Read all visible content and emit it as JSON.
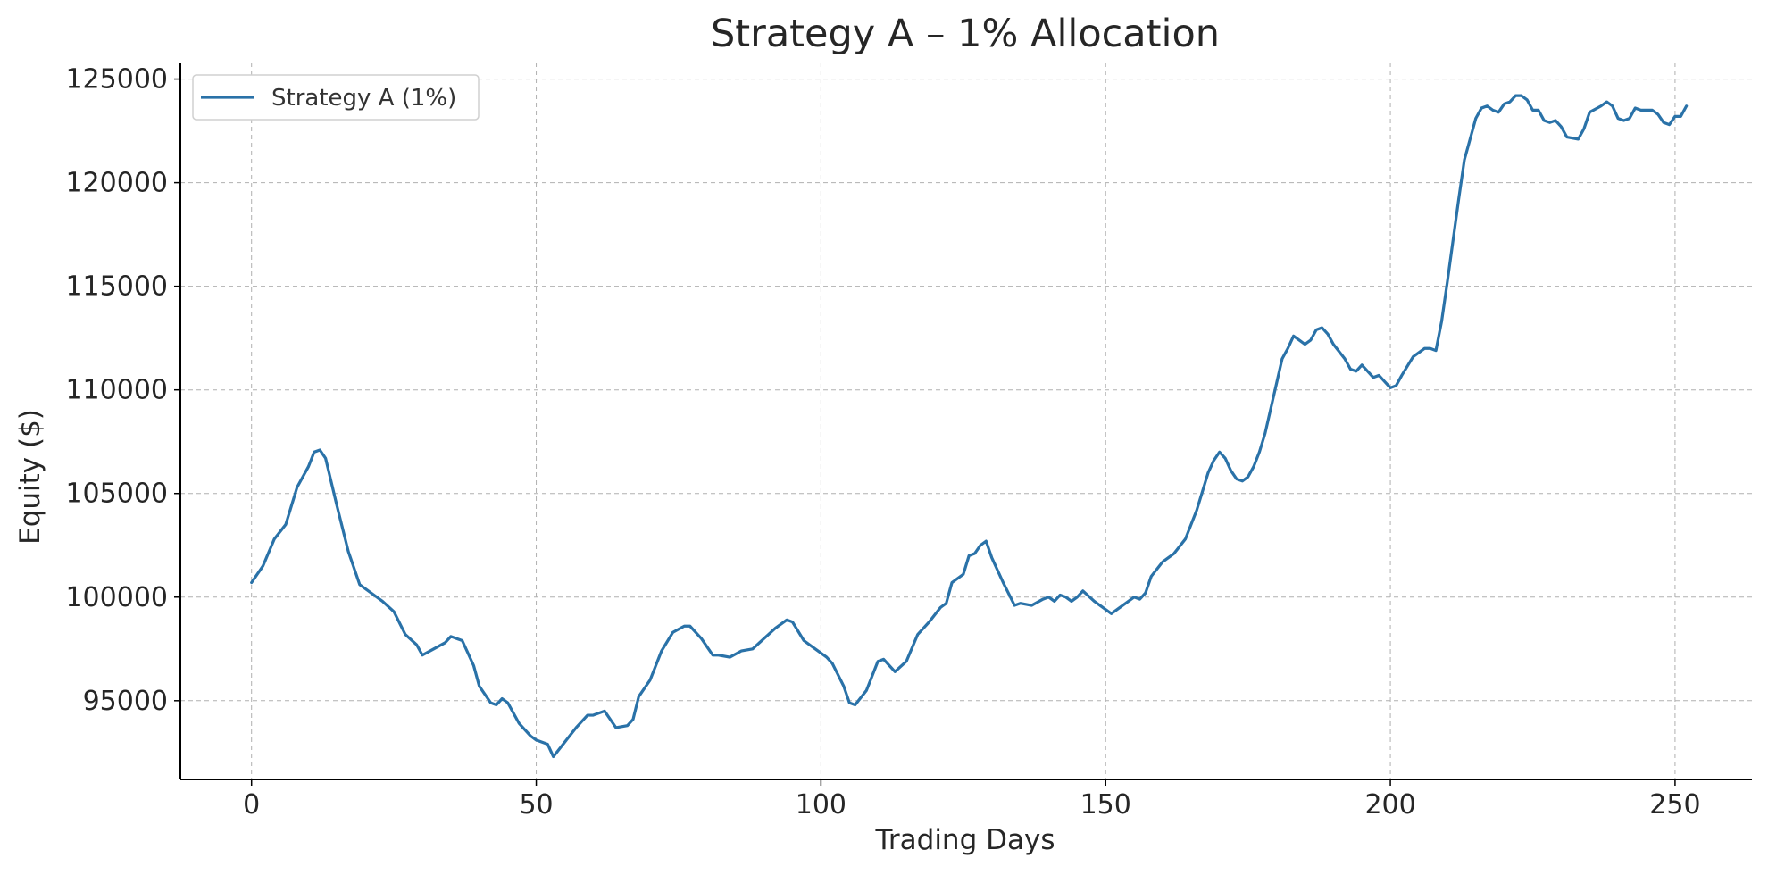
{
  "chart_data": {
    "type": "line",
    "title": "Strategy A – 1% Allocation",
    "xlabel": "Trading Days",
    "ylabel": "Equity ($)",
    "xlim": [
      -12.5,
      263.5
    ],
    "ylim": [
      91200,
      125800
    ],
    "x_ticks": [
      0,
      50,
      100,
      150,
      200,
      250
    ],
    "y_ticks": [
      95000,
      100000,
      105000,
      110000,
      115000,
      120000,
      125000
    ],
    "grid": true,
    "legend_position": "top-left",
    "series": [
      {
        "name": "Strategy A (1%)",
        "color": "#2a72a8",
        "points": [
          [
            0,
            100700
          ],
          [
            2,
            101500
          ],
          [
            4,
            102800
          ],
          [
            6,
            103500
          ],
          [
            8,
            105300
          ],
          [
            10,
            106300
          ],
          [
            11,
            107000
          ],
          [
            12,
            107100
          ],
          [
            13,
            106700
          ],
          [
            15,
            104400
          ],
          [
            17,
            102200
          ],
          [
            19,
            100600
          ],
          [
            21,
            100200
          ],
          [
            23,
            99800
          ],
          [
            25,
            99300
          ],
          [
            27,
            98200
          ],
          [
            29,
            97700
          ],
          [
            30,
            97200
          ],
          [
            32,
            97500
          ],
          [
            34,
            97800
          ],
          [
            35,
            98100
          ],
          [
            37,
            97900
          ],
          [
            39,
            96700
          ],
          [
            40,
            95700
          ],
          [
            42,
            94900
          ],
          [
            43,
            94800
          ],
          [
            44,
            95100
          ],
          [
            45,
            94900
          ],
          [
            47,
            93900
          ],
          [
            49,
            93300
          ],
          [
            50,
            93100
          ],
          [
            52,
            92900
          ],
          [
            53,
            92300
          ],
          [
            55,
            93000
          ],
          [
            57,
            93700
          ],
          [
            59,
            94300
          ],
          [
            60,
            94300
          ],
          [
            62,
            94500
          ],
          [
            64,
            93700
          ],
          [
            66,
            93800
          ],
          [
            67,
            94100
          ],
          [
            68,
            95200
          ],
          [
            70,
            96000
          ],
          [
            72,
            97400
          ],
          [
            74,
            98300
          ],
          [
            76,
            98600
          ],
          [
            77,
            98600
          ],
          [
            79,
            98000
          ],
          [
            81,
            97200
          ],
          [
            82,
            97200
          ],
          [
            84,
            97100
          ],
          [
            86,
            97400
          ],
          [
            88,
            97500
          ],
          [
            90,
            98000
          ],
          [
            92,
            98500
          ],
          [
            94,
            98900
          ],
          [
            95,
            98800
          ],
          [
            97,
            97900
          ],
          [
            99,
            97500
          ],
          [
            101,
            97100
          ],
          [
            102,
            96800
          ],
          [
            104,
            95700
          ],
          [
            105,
            94900
          ],
          [
            106,
            94800
          ],
          [
            108,
            95500
          ],
          [
            110,
            96900
          ],
          [
            111,
            97000
          ],
          [
            113,
            96400
          ],
          [
            115,
            96900
          ],
          [
            117,
            98200
          ],
          [
            119,
            98800
          ],
          [
            121,
            99500
          ],
          [
            122,
            99700
          ],
          [
            123,
            100700
          ],
          [
            125,
            101100
          ],
          [
            126,
            102000
          ],
          [
            127,
            102100
          ],
          [
            128,
            102500
          ],
          [
            129,
            102700
          ],
          [
            130,
            101900
          ],
          [
            132,
            100700
          ],
          [
            134,
            99600
          ],
          [
            135,
            99700
          ],
          [
            137,
            99600
          ],
          [
            139,
            99900
          ],
          [
            140,
            100000
          ],
          [
            141,
            99800
          ],
          [
            142,
            100100
          ],
          [
            143,
            100000
          ],
          [
            144,
            99800
          ],
          [
            145,
            100000
          ],
          [
            146,
            100300
          ],
          [
            148,
            99800
          ],
          [
            150,
            99400
          ],
          [
            151,
            99200
          ],
          [
            153,
            99600
          ],
          [
            155,
            100000
          ],
          [
            156,
            99900
          ],
          [
            157,
            100200
          ],
          [
            158,
            101000
          ],
          [
            160,
            101700
          ],
          [
            162,
            102100
          ],
          [
            164,
            102800
          ],
          [
            166,
            104200
          ],
          [
            168,
            106000
          ],
          [
            169,
            106600
          ],
          [
            170,
            107000
          ],
          [
            171,
            106700
          ],
          [
            172,
            106100
          ],
          [
            173,
            105700
          ],
          [
            174,
            105600
          ],
          [
            175,
            105800
          ],
          [
            176,
            106300
          ],
          [
            177,
            107000
          ],
          [
            178,
            107900
          ],
          [
            180,
            110300
          ],
          [
            181,
            111500
          ],
          [
            182,
            112000
          ],
          [
            183,
            112600
          ],
          [
            185,
            112200
          ],
          [
            186,
            112400
          ],
          [
            187,
            112900
          ],
          [
            188,
            113000
          ],
          [
            189,
            112700
          ],
          [
            190,
            112200
          ],
          [
            192,
            111500
          ],
          [
            193,
            111000
          ],
          [
            194,
            110900
          ],
          [
            195,
            111200
          ],
          [
            196,
            110900
          ],
          [
            197,
            110600
          ],
          [
            198,
            110700
          ],
          [
            199,
            110400
          ],
          [
            200,
            110100
          ],
          [
            201,
            110200
          ],
          [
            202,
            110700
          ],
          [
            204,
            111600
          ],
          [
            206,
            112000
          ],
          [
            207,
            112000
          ],
          [
            208,
            111900
          ],
          [
            209,
            113300
          ],
          [
            210,
            115200
          ],
          [
            212,
            119200
          ],
          [
            213,
            121100
          ],
          [
            214,
            122100
          ],
          [
            215,
            123100
          ],
          [
            216,
            123600
          ],
          [
            217,
            123700
          ],
          [
            218,
            123500
          ],
          [
            219,
            123400
          ],
          [
            220,
            123800
          ],
          [
            221,
            123900
          ],
          [
            222,
            124200
          ],
          [
            223,
            124200
          ],
          [
            224,
            124000
          ],
          [
            225,
            123500
          ],
          [
            226,
            123500
          ],
          [
            227,
            123000
          ],
          [
            228,
            122900
          ],
          [
            229,
            123000
          ],
          [
            230,
            122700
          ],
          [
            231,
            122200
          ],
          [
            233,
            122100
          ],
          [
            234,
            122600
          ],
          [
            235,
            123400
          ],
          [
            237,
            123700
          ],
          [
            238,
            123900
          ],
          [
            239,
            123700
          ],
          [
            240,
            123100
          ],
          [
            241,
            123000
          ],
          [
            242,
            123100
          ],
          [
            243,
            123600
          ],
          [
            244,
            123500
          ],
          [
            246,
            123500
          ],
          [
            247,
            123300
          ],
          [
            248,
            122900
          ],
          [
            249,
            122800
          ],
          [
            250,
            123200
          ],
          [
            251,
            123200
          ],
          [
            252,
            123700
          ]
        ]
      }
    ]
  }
}
